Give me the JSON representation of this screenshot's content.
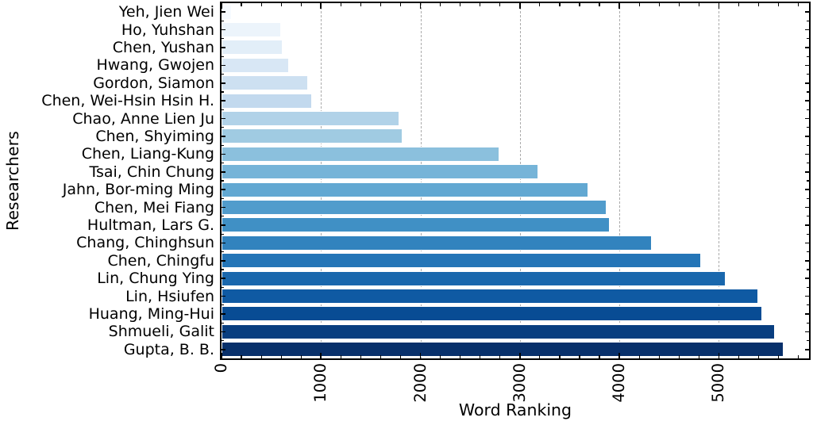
{
  "chart_data": {
    "type": "bar",
    "orientation": "horizontal",
    "title": "",
    "xlabel": "Word Ranking",
    "ylabel": "Researchers",
    "xlim": [
      0,
      5907
    ],
    "xticks": [
      0,
      1000,
      2000,
      3000,
      4000,
      5000
    ],
    "minor_tick_step": 200,
    "grid": "vertical dashed gridlines at major x ticks",
    "legend": "none",
    "colormap": "Blues (light at top, dark at bottom)",
    "categories": [
      "Yeh, Jien Wei",
      "Ho, Yuhshan",
      "Chen, Yushan",
      "Hwang, Gwojen",
      "Gordon, Siamon",
      "Chen, Wei-Hsin Hsin H.",
      "Chao, Anne Lien Ju",
      "Chen, Shyiming",
      "Chen, Liang-Kung",
      "Tsai, Chin Chung",
      "Jahn, Bor-ming Ming",
      "Chen, Mei Fiang",
      "Hultman, Lars G.",
      "Chang, Chinghsun",
      "Chen, Chingfu",
      "Lin, Chung Ying",
      "Lin, Hsiufen",
      "Huang, Ming-Hui",
      "Shmueli, Galit",
      "Gupta, B. B."
    ],
    "values": [
      105,
      595,
      615,
      675,
      870,
      910,
      1790,
      1820,
      2790,
      3185,
      3685,
      3870,
      3900,
      4325,
      4825,
      5070,
      5400,
      5440,
      5565,
      5655
    ],
    "bar_colors": [
      "#f7fbff",
      "#ecf4fb",
      "#e2eef8",
      "#d8e7f5",
      "#cde0f1",
      "#c2d9ee",
      "#b1d2e8",
      "#a0cbe2",
      "#8bc0dd",
      "#76b4d8",
      "#62a8d2",
      "#519ccc",
      "#4090c5",
      "#3283be",
      "#2475b7",
      "#1967ad",
      "#0f5aa3",
      "#084c94",
      "#083e80",
      "#08306b"
    ]
  },
  "colors": {
    "background": "#ffffff",
    "axis": "#000000",
    "grid": "#ababab",
    "bar_edge": "#ffffff",
    "text": "#000000"
  }
}
